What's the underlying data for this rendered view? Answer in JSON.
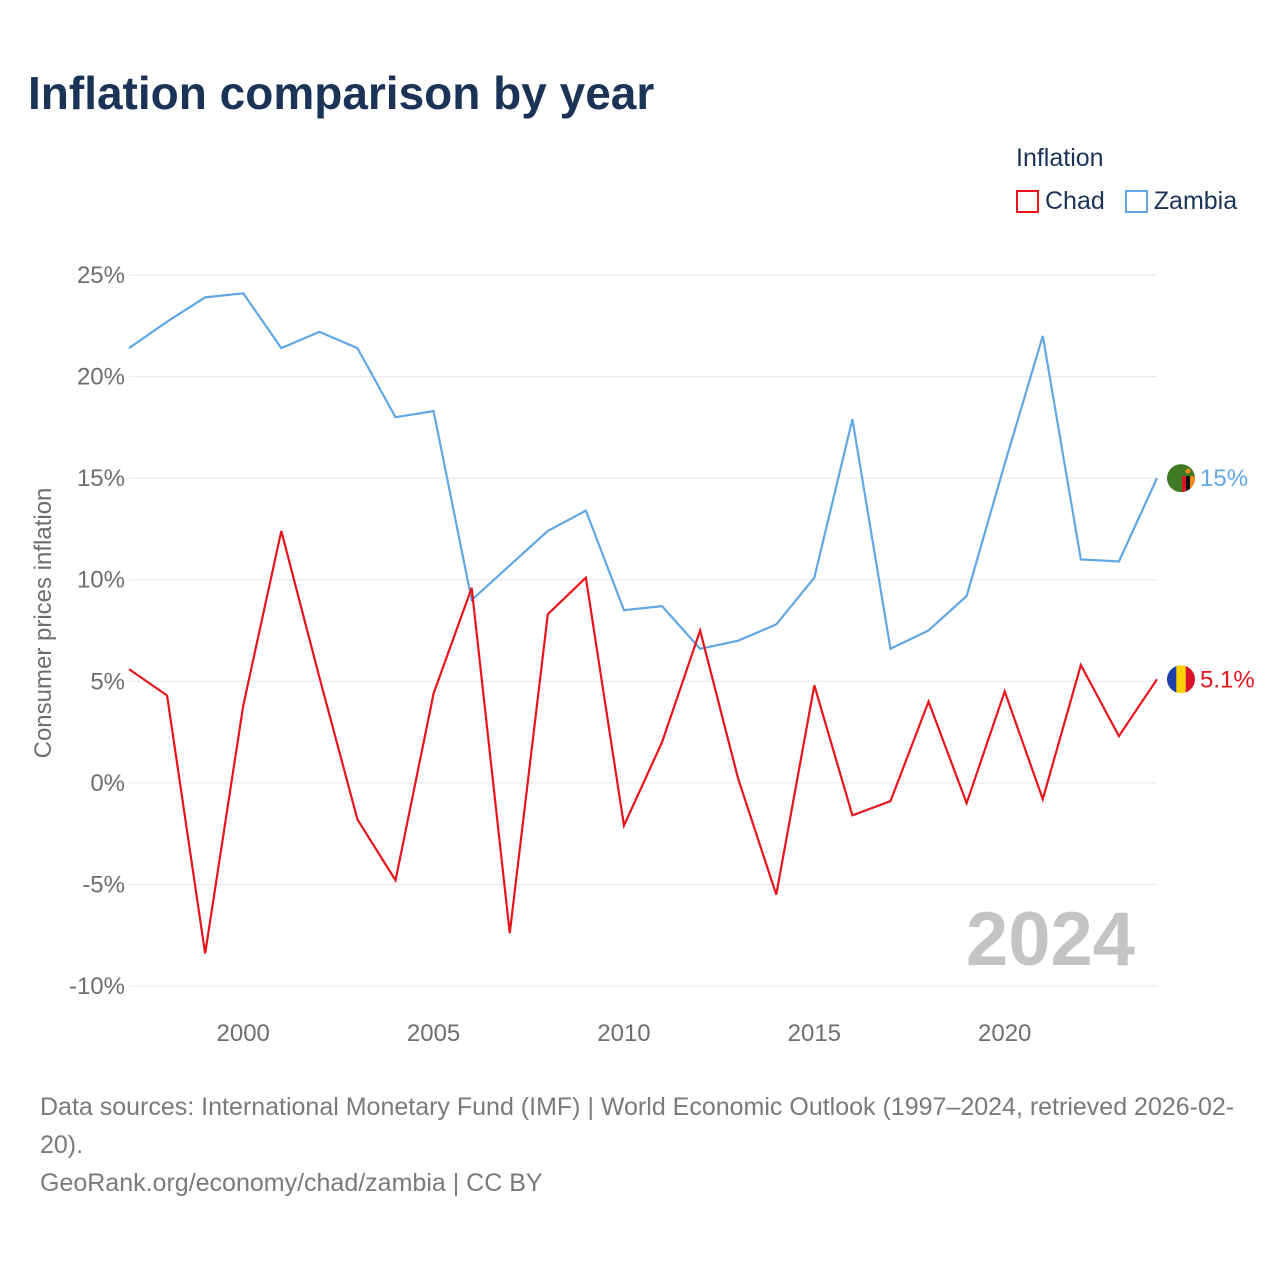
{
  "title": "Inflation comparison by year",
  "legend": {
    "title": "Inflation",
    "items": [
      {
        "label": "Chad",
        "color": "#e8141b"
      },
      {
        "label": "Zambia",
        "color": "#62a7e2"
      }
    ]
  },
  "chart_data": {
    "type": "line",
    "title": "Inflation comparison by year",
    "xlabel": "",
    "ylabel": "Consumer prices inflation",
    "xlim": [
      1997,
      2024
    ],
    "ylim": [
      -10,
      25
    ],
    "x_ticks": [
      2000,
      2005,
      2010,
      2015,
      2020
    ],
    "y_ticks": [
      25,
      20,
      15,
      10,
      5,
      0,
      -5,
      -10
    ],
    "y_tick_labels": [
      "25%",
      "20%",
      "15%",
      "10%",
      "5%",
      "0%",
      "-5%",
      "-10%"
    ],
    "grid": true,
    "watermark_year": "2024",
    "x": [
      1997,
      1998,
      1999,
      2000,
      2001,
      2002,
      2003,
      2004,
      2005,
      2006,
      2007,
      2008,
      2009,
      2010,
      2011,
      2012,
      2013,
      2014,
      2015,
      2016,
      2017,
      2018,
      2019,
      2020,
      2021,
      2022,
      2023,
      2024
    ],
    "series": [
      {
        "name": "Zambia",
        "color": "#62a7e2",
        "end_label": "15%",
        "values": [
          21.4,
          22.7,
          23.9,
          24.1,
          21.4,
          22.2,
          21.4,
          18.0,
          18.3,
          9.0,
          10.7,
          12.4,
          13.4,
          8.5,
          8.7,
          6.6,
          7.0,
          7.8,
          10.1,
          17.9,
          6.6,
          7.5,
          9.2,
          15.7,
          22.0,
          11.0,
          10.9,
          15.0
        ]
      },
      {
        "name": "Chad",
        "color": "#e8141b",
        "end_label": "5.1%",
        "values": [
          5.6,
          4.3,
          -8.4,
          3.8,
          12.4,
          5.2,
          -1.8,
          -4.8,
          4.4,
          9.6,
          -7.4,
          8.3,
          10.1,
          -2.1,
          2.0,
          7.5,
          0.2,
          -5.5,
          4.8,
          -1.6,
          -0.9,
          4.0,
          -1.0,
          4.5,
          -0.8,
          5.8,
          2.3,
          5.1
        ]
      }
    ]
  },
  "footer": {
    "sources": "Data sources: International Monetary Fund (IMF) | World Economic Outlook (1997–2024, retrieved 2026-02-20).",
    "credit": "GeoRank.org/economy/chad/zambia | CC BY"
  }
}
